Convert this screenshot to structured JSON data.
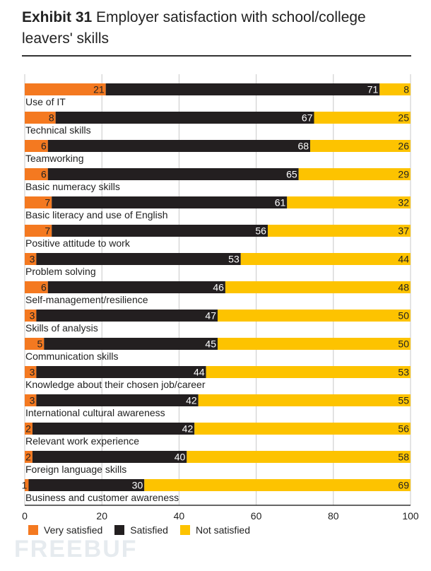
{
  "title": {
    "bold": "Exhibit 31",
    "rest": "Employer satisfaction with school/college leavers' skills"
  },
  "colors": {
    "very_satisfied": "#f47920",
    "satisfied": "#231f20",
    "not_satisfied": "#fdc300"
  },
  "watermark": "FREEBUF",
  "chart_data": {
    "type": "bar",
    "orientation": "horizontal",
    "stacked": true,
    "xlim": [
      0,
      100
    ],
    "xticks": [
      0,
      20,
      40,
      60,
      80,
      100
    ],
    "grid": true,
    "legend_position": "bottom",
    "categories": [
      "Use of IT",
      "Technical skills",
      "Teamworking",
      "Basic numeracy skills",
      "Basic literacy and use of English",
      "Positive attitude to work",
      "Problem solving",
      "Self-management/resilience",
      "Skills of analysis",
      "Communication skills",
      "Knowledge about their chosen job/career",
      "International cultural awareness",
      "Relevant work experience",
      "Foreign language skills",
      "Business and customer awareness"
    ],
    "series": [
      {
        "name": "Very satisfied",
        "values": [
          21,
          8,
          6,
          6,
          7,
          7,
          3,
          6,
          3,
          5,
          3,
          3,
          2,
          2,
          1
        ]
      },
      {
        "name": "Satisfied",
        "values": [
          71,
          67,
          68,
          65,
          61,
          56,
          53,
          46,
          47,
          45,
          44,
          42,
          42,
          40,
          30
        ]
      },
      {
        "name": "Not satisfied",
        "values": [
          8,
          25,
          26,
          29,
          32,
          37,
          44,
          48,
          50,
          50,
          53,
          55,
          56,
          58,
          69
        ]
      }
    ]
  }
}
